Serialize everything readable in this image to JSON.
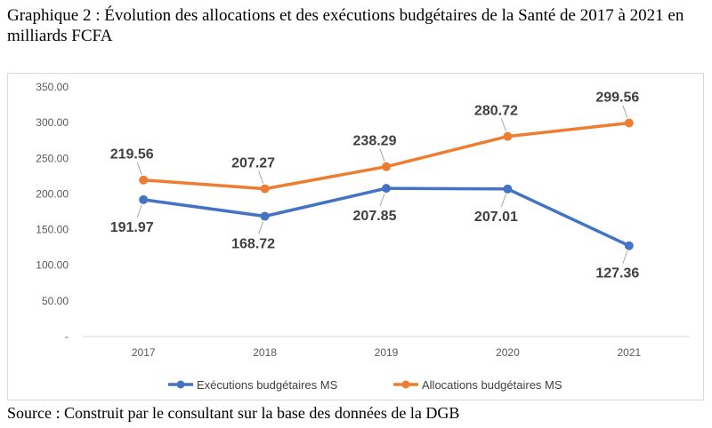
{
  "caption": "Graphique 2 : Évolution des allocations et des exécutions budgétaires de la Santé de 2017 à 2021 en milliards FCFA",
  "source": "Source : Construit par le consultant sur la base des données de la DGB",
  "chart_data": {
    "type": "line",
    "title": "",
    "xlabel": "",
    "ylabel": "",
    "categories": [
      "2017",
      "2018",
      "2019",
      "2020",
      "2021"
    ],
    "ylim": [
      0,
      350
    ],
    "yticks": [
      {
        "value": 0,
        "label": "-"
      },
      {
        "value": 50,
        "label": "50.00"
      },
      {
        "value": 100,
        "label": "100.00"
      },
      {
        "value": 150,
        "label": "150.00"
      },
      {
        "value": 200,
        "label": "200.00"
      },
      {
        "value": 250,
        "label": "250.00"
      },
      {
        "value": 300,
        "label": "300.00"
      },
      {
        "value": 350,
        "label": "350.00"
      }
    ],
    "grid": false,
    "legend_position": "bottom",
    "series": [
      {
        "name": "Exécutions budgétaires MS",
        "color": "#4472c4",
        "values": [
          191.97,
          168.72,
          207.85,
          207.01,
          127.36
        ],
        "labels": [
          "191.97",
          "168.72",
          "207.85",
          "207.01",
          "127.36"
        ],
        "label_position": "below"
      },
      {
        "name": "Allocations budgétaires MS",
        "color": "#ed7d31",
        "values": [
          219.56,
          207.27,
          238.29,
          280.72,
          299.56
        ],
        "labels": [
          "219.56",
          "207.27",
          "238.29",
          "280.72",
          "299.56"
        ],
        "label_position": "above"
      }
    ]
  }
}
